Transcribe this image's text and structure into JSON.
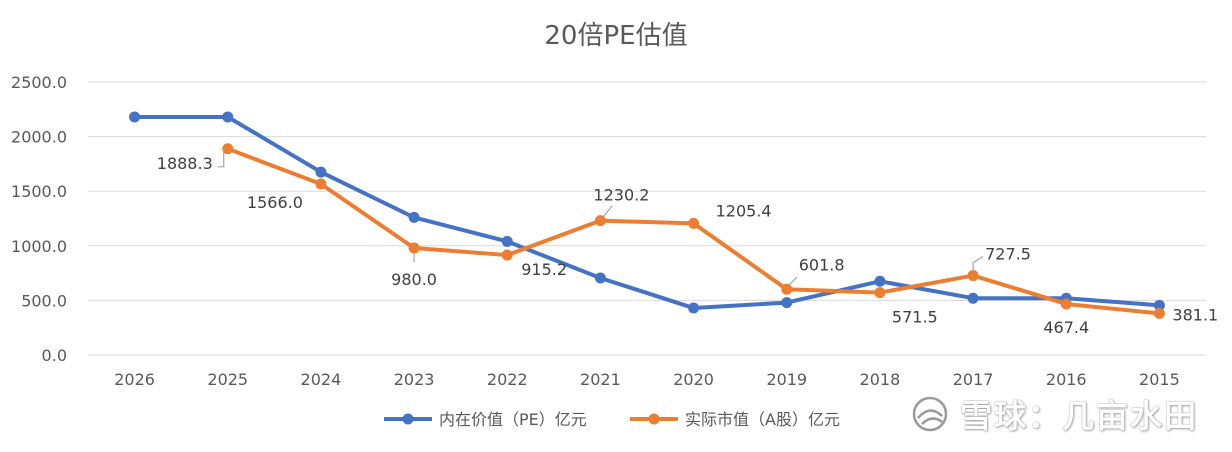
{
  "chart_data": {
    "type": "line",
    "title": "20倍PE估值",
    "xlabel": "",
    "ylabel": "",
    "categories": [
      "2026",
      "2025",
      "2024",
      "2023",
      "2022",
      "2021",
      "2020",
      "2019",
      "2018",
      "2017",
      "2016",
      "2015"
    ],
    "ylim": [
      0,
      2500
    ],
    "yticks": [
      "0.0",
      "500.0",
      "1000.0",
      "1500.0",
      "2000.0",
      "2500.0"
    ],
    "grid": true,
    "legend_position": "bottom",
    "series": [
      {
        "name": "内在价值（PE）亿元",
        "color": "#4472C4",
        "values": [
          2180,
          2180,
          1675,
          1260,
          1040,
          705,
          430,
          480,
          675,
          520,
          520,
          455
        ],
        "labels": [
          null,
          null,
          null,
          null,
          null,
          null,
          null,
          null,
          null,
          null,
          null,
          null
        ]
      },
      {
        "name": "实际市值（A股）亿元",
        "color": "#ED7D31",
        "values": [
          null,
          1888.3,
          1566.0,
          980.0,
          915.2,
          1230.2,
          1205.4,
          601.8,
          571.5,
          727.5,
          467.4,
          381.1
        ],
        "labels": [
          null,
          "1888.3",
          "1566.0",
          "980.0",
          "915.2",
          "1230.2",
          "1205.4",
          "601.8",
          "571.5",
          "727.5",
          "467.4",
          "381.1"
        ]
      }
    ]
  },
  "watermark": {
    "text": "雪球：几亩水田",
    "icon": "xueqiu-snowball-icon"
  }
}
